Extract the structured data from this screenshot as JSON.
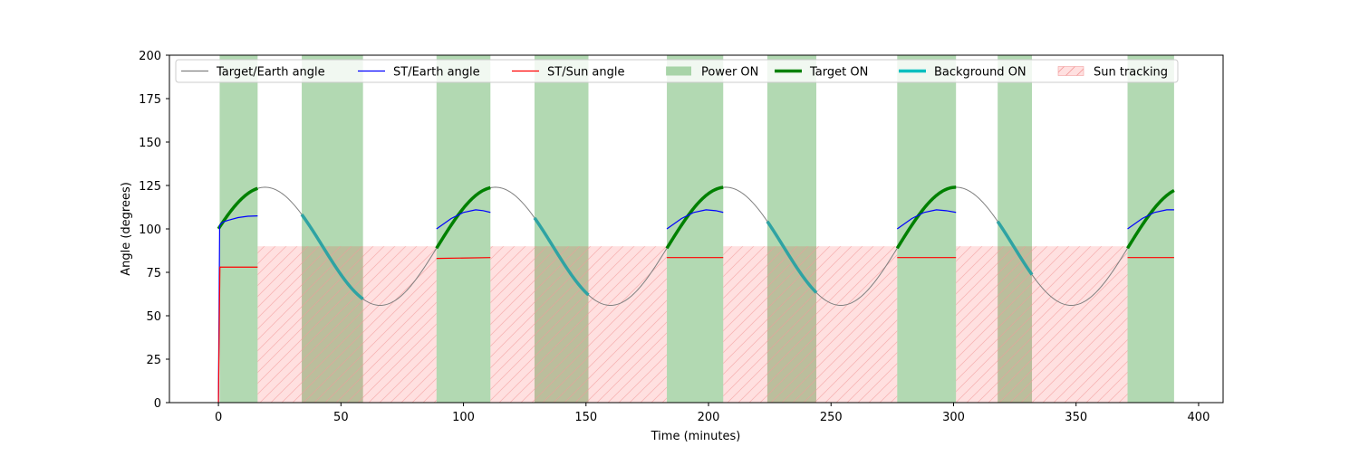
{
  "chart_data": {
    "type": "line",
    "xlabel": "Time (minutes)",
    "ylabel": "Angle (degrees)",
    "xlim": [
      -20,
      410
    ],
    "ylim": [
      0,
      200
    ],
    "xticks": [
      0,
      50,
      100,
      150,
      200,
      250,
      300,
      350,
      400
    ],
    "yticks": [
      0,
      25,
      50,
      75,
      100,
      125,
      150,
      175,
      200
    ],
    "grid": false,
    "legend_position": "top",
    "legend": [
      {
        "label": "Target/Earth angle",
        "kind": "line",
        "color": "#808080"
      },
      {
        "label": "ST/Earth angle",
        "kind": "line",
        "color": "#0000ff"
      },
      {
        "label": "ST/Sun angle",
        "kind": "line",
        "color": "#ff0000"
      },
      {
        "label": "Power ON",
        "kind": "patch",
        "color": "#008000"
      },
      {
        "label": "Target ON",
        "kind": "thickline",
        "color": "#008000"
      },
      {
        "label": "Background ON",
        "kind": "thickline",
        "color": "#00bfbf"
      },
      {
        "label": "Sun tracking",
        "kind": "hatch",
        "color": "#ff9999"
      }
    ],
    "target_earth_angle": {
      "name": "Target/Earth angle",
      "color": "#808080",
      "center": 90,
      "amplitude": 34,
      "period_min": 94,
      "peak_time": 19,
      "t_start": 0,
      "t_end": 390
    },
    "power_on_intervals": [
      [
        0.5,
        16
      ],
      [
        34,
        59
      ],
      [
        89,
        111
      ],
      [
        129,
        151
      ],
      [
        183,
        206
      ],
      [
        224,
        244
      ],
      [
        277,
        301
      ],
      [
        318,
        332
      ],
      [
        371,
        390
      ]
    ],
    "target_on_intervals": [
      [
        0,
        16
      ],
      [
        89,
        111
      ],
      [
        183,
        206
      ],
      [
        277,
        301
      ],
      [
        371,
        390
      ]
    ],
    "background_on_intervals": [
      [
        34,
        59
      ],
      [
        129,
        151
      ],
      [
        224,
        244
      ],
      [
        318,
        332
      ]
    ],
    "sun_tracking_intervals": [
      [
        16,
        89
      ],
      [
        111,
        183
      ],
      [
        206,
        277
      ],
      [
        301,
        371
      ]
    ],
    "sun_tracking_level": 90,
    "st_earth_angle": {
      "name": "ST/Earth angle",
      "color": "#0000ff",
      "segments": [
        {
          "x": [
            0,
            0.5,
            1,
            2,
            4,
            8,
            12,
            16
          ],
          "y": [
            0,
            102,
            103,
            104,
            105,
            106.5,
            107.3,
            107.5
          ]
        },
        {
          "x": [
            89,
            95,
            100,
            105,
            108,
            111
          ],
          "y": [
            100,
            106,
            109.5,
            111,
            110.5,
            109.5
          ]
        },
        {
          "x": [
            183,
            189,
            194,
            199,
            203,
            206
          ],
          "y": [
            100,
            106,
            109.5,
            111,
            110.5,
            109.5
          ]
        },
        {
          "x": [
            277,
            283,
            288,
            293,
            297,
            301
          ],
          "y": [
            100,
            106,
            109.5,
            111,
            110.5,
            109.5
          ]
        },
        {
          "x": [
            371,
            377,
            382,
            387,
            390
          ],
          "y": [
            100,
            106,
            109.5,
            111,
            111
          ]
        }
      ]
    },
    "st_sun_angle": {
      "name": "ST/Sun angle",
      "color": "#ff0000",
      "segments": [
        {
          "x": [
            0,
            0.6,
            16
          ],
          "y": [
            0,
            78,
            78
          ]
        },
        {
          "x": [
            89,
            111
          ],
          "y": [
            83,
            83.5
          ]
        },
        {
          "x": [
            183,
            206
          ],
          "y": [
            83.5,
            83.5
          ]
        },
        {
          "x": [
            277,
            301
          ],
          "y": [
            83.5,
            83.5
          ]
        },
        {
          "x": [
            371,
            390
          ],
          "y": [
            83.5,
            83.5
          ]
        }
      ]
    }
  }
}
